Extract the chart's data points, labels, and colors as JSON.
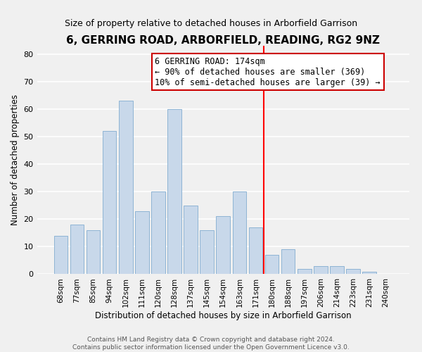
{
  "title": "6, GERRING ROAD, ARBORFIELD, READING, RG2 9NZ",
  "subtitle": "Size of property relative to detached houses in Arborfield Garrison",
  "xlabel": "Distribution of detached houses by size in Arborfield Garrison",
  "ylabel": "Number of detached properties",
  "bin_labels": [
    "68sqm",
    "77sqm",
    "85sqm",
    "94sqm",
    "102sqm",
    "111sqm",
    "120sqm",
    "128sqm",
    "137sqm",
    "145sqm",
    "154sqm",
    "163sqm",
    "171sqm",
    "180sqm",
    "188sqm",
    "197sqm",
    "206sqm",
    "214sqm",
    "223sqm",
    "231sqm",
    "240sqm"
  ],
  "bar_heights": [
    14,
    18,
    16,
    52,
    63,
    23,
    30,
    60,
    25,
    16,
    21,
    30,
    17,
    7,
    9,
    2,
    3,
    3,
    2,
    1,
    0
  ],
  "bar_color": "#c8d8ea",
  "bar_edge_color": "#8eb4d4",
  "vline_color": "red",
  "annotation_line1": "6 GERRING ROAD: 174sqm",
  "annotation_line2": "← 90% of detached houses are smaller (369)",
  "annotation_line3": "10% of semi-detached houses are larger (39) →",
  "annotation_box_color": "white",
  "annotation_box_edge": "#cc0000",
  "ylim": [
    0,
    83
  ],
  "yticks": [
    0,
    10,
    20,
    30,
    40,
    50,
    60,
    70,
    80
  ],
  "footer": "Contains HM Land Registry data © Crown copyright and database right 2024.\nContains public sector information licensed under the Open Government Licence v3.0.",
  "bg_color": "#f0f0f0",
  "plot_bg_color": "#f0f0f0",
  "grid_color": "white",
  "title_fontsize": 11,
  "subtitle_fontsize": 9,
  "axis_label_fontsize": 8.5,
  "tick_fontsize": 7.5,
  "footer_fontsize": 6.5,
  "annotation_fontsize": 8.5
}
